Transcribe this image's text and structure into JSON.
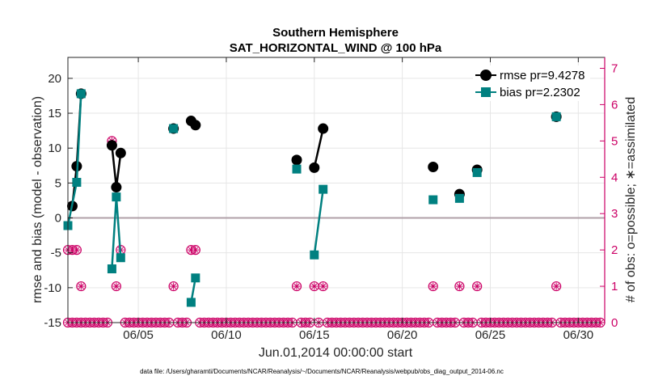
{
  "colors": {
    "rmse": "#000000",
    "bias": "#008080",
    "obs": "#cc0066",
    "zero": "#b0a0a8",
    "grid": "#e6e6e6",
    "axis": "#262626"
  },
  "chart_data": {
    "type": "line",
    "title": "Southern Hemisphere",
    "subtitle": "SAT_HORIZONTAL_WIND @ 100 hPa",
    "xlabel": "Jun.01,2014 00:00:00 start",
    "ylabel": "rmse and bias (model - observation)",
    "y2label": "# of obs: o=possible; ∗=assimilated",
    "footer": "data file: /Users/gharamti/Documents/NCAR/Reanalysis/~/Documents/NCAR/Reanalysis/webpub/obs_diag_output_2014-06.nc",
    "xlim": [
      1,
      31.5
    ],
    "ylim": [
      -15,
      23
    ],
    "y2lim": [
      0,
      7.3
    ],
    "xticks": [
      5,
      10,
      15,
      20,
      25,
      30
    ],
    "xticklabels": [
      "06/05",
      "06/10",
      "06/15",
      "06/20",
      "06/25",
      "06/30"
    ],
    "yticks": [
      -15,
      -10,
      -5,
      0,
      5,
      10,
      15,
      20
    ],
    "yticklabels": [
      "-15",
      "-10",
      "-5",
      "0",
      "5",
      "10",
      "15",
      "20"
    ],
    "y2ticks": [
      0,
      1,
      2,
      3,
      4,
      5,
      6,
      7
    ],
    "y2ticklabels": [
      "0",
      "1",
      "2",
      "3",
      "4",
      "5",
      "6",
      "7"
    ],
    "series": [
      {
        "name": "rmse",
        "legend": "rmse pr=9.4278",
        "points": [
          [
            1.25,
            1.7
          ],
          [
            1.5,
            7.4
          ],
          [
            1.75,
            17.8
          ],
          [
            null,
            null
          ],
          [
            3.5,
            10.4
          ],
          [
            3.75,
            4.4
          ],
          [
            4.0,
            9.3
          ],
          [
            null,
            null
          ],
          [
            7.0,
            12.8
          ],
          [
            null,
            null
          ],
          [
            8.0,
            13.9
          ],
          [
            8.25,
            13.3
          ],
          [
            null,
            null
          ],
          [
            14.0,
            8.3
          ],
          [
            null,
            null
          ],
          [
            15.0,
            7.2
          ],
          [
            15.5,
            12.8
          ],
          [
            null,
            null
          ],
          [
            21.75,
            7.3
          ],
          [
            null,
            null
          ],
          [
            23.25,
            3.4
          ],
          [
            null,
            null
          ],
          [
            24.25,
            6.9
          ],
          [
            null,
            null
          ],
          [
            28.75,
            14.5
          ]
        ]
      },
      {
        "name": "bias",
        "legend": "bias pr=2.2302",
        "points": [
          [
            1.0,
            -1.1
          ],
          [
            1.5,
            5.1
          ],
          [
            1.75,
            17.8
          ],
          [
            null,
            null
          ],
          [
            3.5,
            -7.3
          ],
          [
            3.75,
            3.0
          ],
          [
            4.0,
            -5.7
          ],
          [
            null,
            null
          ],
          [
            7.0,
            12.8
          ],
          [
            null,
            null
          ],
          [
            8.0,
            -12.1
          ],
          [
            8.25,
            -8.6
          ],
          [
            null,
            null
          ],
          [
            14.0,
            7.0
          ],
          [
            null,
            null
          ],
          [
            15.0,
            -5.3
          ],
          [
            15.5,
            4.1
          ],
          [
            null,
            null
          ],
          [
            21.75,
            2.6
          ],
          [
            null,
            null
          ],
          [
            23.25,
            2.8
          ],
          [
            null,
            null
          ],
          [
            24.25,
            6.5
          ],
          [
            null,
            null
          ],
          [
            28.75,
            14.5
          ]
        ]
      }
    ],
    "obs_counts": [
      [
        1.0,
        2
      ],
      [
        1.25,
        2
      ],
      [
        1.5,
        2
      ],
      [
        1.75,
        1
      ],
      [
        3.5,
        5
      ],
      [
        3.75,
        1
      ],
      [
        4.0,
        2
      ],
      [
        7.0,
        1
      ],
      [
        8.0,
        2
      ],
      [
        8.25,
        2
      ],
      [
        14.0,
        1
      ],
      [
        15.0,
        1
      ],
      [
        15.5,
        1
      ],
      [
        21.75,
        1
      ],
      [
        23.25,
        1
      ],
      [
        24.25,
        1
      ],
      [
        28.75,
        1
      ],
      [
        1.0,
        0
      ],
      [
        1.25,
        0
      ],
      [
        1.5,
        0
      ],
      [
        1.75,
        0
      ],
      [
        2.0,
        0
      ],
      [
        2.25,
        0
      ],
      [
        2.5,
        0
      ],
      [
        2.75,
        0
      ],
      [
        3.0,
        0
      ],
      [
        3.25,
        0
      ],
      [
        4.25,
        0
      ],
      [
        4.5,
        0
      ],
      [
        4.75,
        0
      ],
      [
        5.0,
        0
      ],
      [
        5.25,
        0
      ],
      [
        5.5,
        0
      ],
      [
        5.75,
        0
      ],
      [
        6.0,
        0
      ],
      [
        6.25,
        0
      ],
      [
        6.5,
        0
      ],
      [
        6.75,
        0
      ],
      [
        7.25,
        0
      ],
      [
        7.5,
        0
      ],
      [
        7.75,
        0
      ],
      [
        8.5,
        0
      ],
      [
        8.75,
        0
      ],
      [
        9.0,
        0
      ],
      [
        9.25,
        0
      ],
      [
        9.5,
        0
      ],
      [
        9.75,
        0
      ],
      [
        10.0,
        0
      ],
      [
        10.25,
        0
      ],
      [
        10.5,
        0
      ],
      [
        10.75,
        0
      ],
      [
        11.0,
        0
      ],
      [
        11.25,
        0
      ],
      [
        11.5,
        0
      ],
      [
        11.75,
        0
      ],
      [
        12.0,
        0
      ],
      [
        12.25,
        0
      ],
      [
        12.5,
        0
      ],
      [
        12.75,
        0
      ],
      [
        13.0,
        0
      ],
      [
        13.25,
        0
      ],
      [
        13.5,
        0
      ],
      [
        13.75,
        0
      ],
      [
        14.25,
        0
      ],
      [
        14.5,
        0
      ],
      [
        14.75,
        0
      ],
      [
        15.25,
        0
      ],
      [
        15.75,
        0
      ],
      [
        16.0,
        0
      ],
      [
        16.25,
        0
      ],
      [
        16.5,
        0
      ],
      [
        16.75,
        0
      ],
      [
        17.0,
        0
      ],
      [
        17.25,
        0
      ],
      [
        17.5,
        0
      ],
      [
        17.75,
        0
      ],
      [
        18.0,
        0
      ],
      [
        18.25,
        0
      ],
      [
        18.5,
        0
      ],
      [
        18.75,
        0
      ],
      [
        19.0,
        0
      ],
      [
        19.25,
        0
      ],
      [
        19.5,
        0
      ],
      [
        19.75,
        0
      ],
      [
        20.0,
        0
      ],
      [
        20.25,
        0
      ],
      [
        20.5,
        0
      ],
      [
        20.75,
        0
      ],
      [
        21.0,
        0
      ],
      [
        21.25,
        0
      ],
      [
        21.5,
        0
      ],
      [
        22.0,
        0
      ],
      [
        22.25,
        0
      ],
      [
        22.5,
        0
      ],
      [
        22.75,
        0
      ],
      [
        23.0,
        0
      ],
      [
        23.5,
        0
      ],
      [
        23.75,
        0
      ],
      [
        24.0,
        0
      ],
      [
        24.5,
        0
      ],
      [
        24.75,
        0
      ],
      [
        25.0,
        0
      ],
      [
        25.25,
        0
      ],
      [
        25.5,
        0
      ],
      [
        25.75,
        0
      ],
      [
        26.0,
        0
      ],
      [
        26.25,
        0
      ],
      [
        26.5,
        0
      ],
      [
        26.75,
        0
      ],
      [
        27.0,
        0
      ],
      [
        27.25,
        0
      ],
      [
        27.5,
        0
      ],
      [
        27.75,
        0
      ],
      [
        28.0,
        0
      ],
      [
        28.25,
        0
      ],
      [
        28.5,
        0
      ],
      [
        29.0,
        0
      ],
      [
        29.25,
        0
      ],
      [
        29.5,
        0
      ],
      [
        29.75,
        0
      ],
      [
        30.0,
        0
      ],
      [
        30.25,
        0
      ],
      [
        30.5,
        0
      ],
      [
        30.75,
        0
      ],
      [
        31.0,
        0
      ],
      [
        31.25,
        0
      ]
    ]
  }
}
